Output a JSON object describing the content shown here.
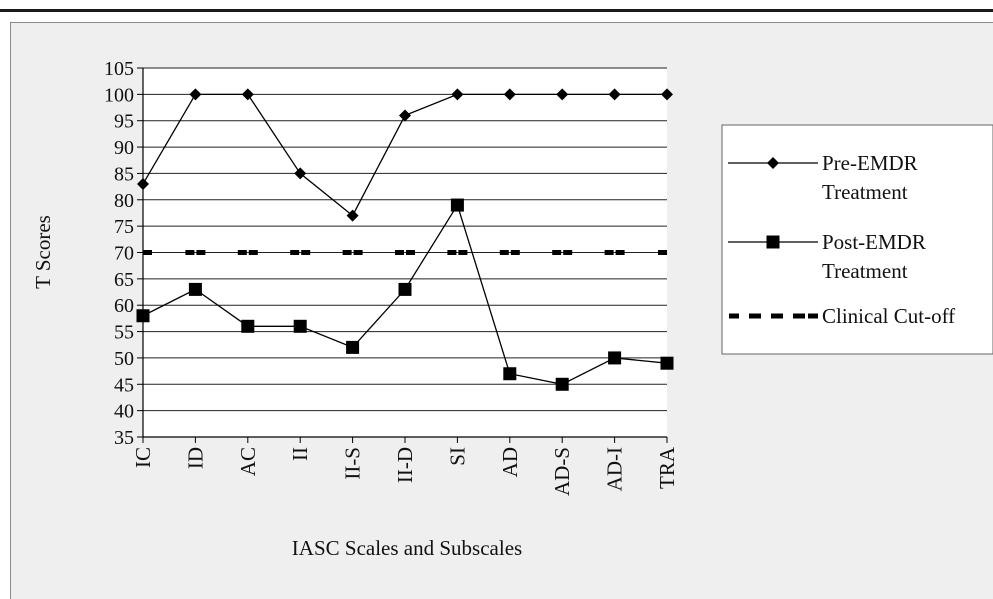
{
  "chart_data": {
    "type": "line",
    "xlabel": "IASC Scales and Subscales",
    "ylabel": "T Scores",
    "categories": [
      "IC",
      "ID",
      "AC",
      "II",
      "II-S",
      "II-D",
      "SI",
      "AD",
      "AD-S",
      "AD-I",
      "TRA"
    ],
    "ylim": [
      35,
      105
    ],
    "yticks": [
      35,
      40,
      45,
      50,
      55,
      60,
      65,
      70,
      75,
      80,
      85,
      90,
      95,
      100,
      105
    ],
    "grid": "horizontal",
    "legend_position": "right",
    "series": [
      {
        "name": "Pre-EMDR Treatment",
        "name_lines": [
          "Pre-EMDR",
          "Treatment"
        ],
        "marker": "diamond",
        "line": "solid",
        "color": "#000000",
        "values": [
          83,
          100,
          100,
          85,
          77,
          96,
          100,
          100,
          100,
          100,
          100
        ]
      },
      {
        "name": "Post-EMDR Treatment",
        "name_lines": [
          "Post-EMDR",
          "Treatment"
        ],
        "marker": "square",
        "line": "solid",
        "color": "#000000",
        "values": [
          58,
          63,
          56,
          56,
          52,
          63,
          79,
          47,
          45,
          50,
          49
        ]
      },
      {
        "name": "Clinical Cut-off",
        "name_lines": [
          "Clinical Cut-off"
        ],
        "marker": "none",
        "line": "dashed",
        "color": "#000000",
        "values": [
          70,
          70,
          70,
          70,
          70,
          70,
          70,
          70,
          70,
          70,
          70
        ]
      }
    ]
  }
}
